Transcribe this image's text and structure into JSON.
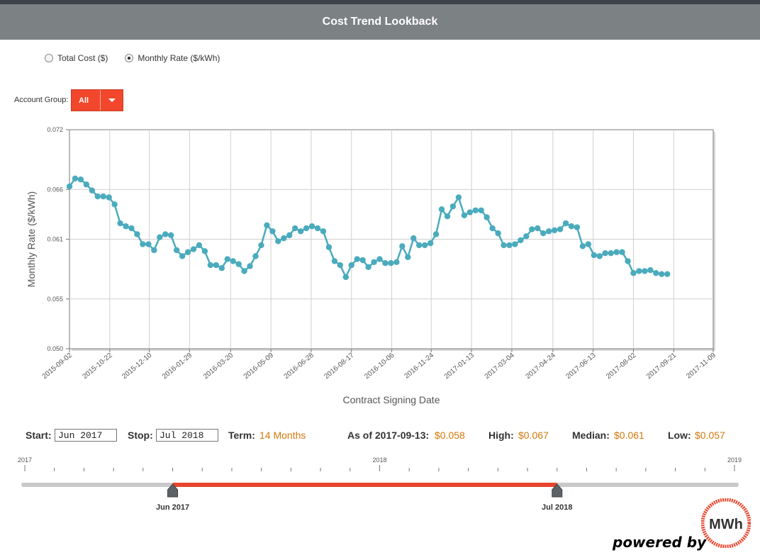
{
  "header": {
    "title": "Cost Trend Lookback"
  },
  "metric_toggle": {
    "options": [
      {
        "label": "Total Cost ($)",
        "selected": false
      },
      {
        "label": "Monthly Rate ($/kWh)",
        "selected": true
      }
    ]
  },
  "account_group": {
    "label": "Account Group:",
    "value": "All"
  },
  "chart_data": {
    "type": "line",
    "xlabel": "Contract Signing Date",
    "ylabel": "Monthly Rate ($/kWh)",
    "ylim": [
      0.05,
      0.072
    ],
    "yticks": [
      "0.050",
      "0.055",
      "0.061",
      "0.066",
      "0.072"
    ],
    "xlim": [
      "2015-09-02",
      "2017-11-09"
    ],
    "xticks": [
      "2015-09-02",
      "2015-10-22",
      "2015-12-10",
      "2016-01-29",
      "2016-03-20",
      "2016-05-09",
      "2016-06-28",
      "2016-08-17",
      "2016-10-06",
      "2016-11-24",
      "2017-01-13",
      "2017-03-04",
      "2017-04-24",
      "2017-06-13",
      "2017-08-02",
      "2017-09-21",
      "2017-11-09"
    ],
    "grid": true,
    "series": [
      {
        "color": "#4aabbd",
        "points": [
          [
            "2015-09-02",
            0.0663
          ],
          [
            "2015-09-09",
            0.0671
          ],
          [
            "2015-09-16",
            0.067
          ],
          [
            "2015-09-23",
            0.0665
          ],
          [
            "2015-09-30",
            0.0659
          ],
          [
            "2015-10-07",
            0.0653
          ],
          [
            "2015-10-14",
            0.0653
          ],
          [
            "2015-10-21",
            0.0652
          ],
          [
            "2015-10-28",
            0.0645
          ],
          [
            "2015-11-04",
            0.0626
          ],
          [
            "2015-11-11",
            0.0623
          ],
          [
            "2015-11-18",
            0.0621
          ],
          [
            "2015-11-25",
            0.0615
          ],
          [
            "2015-12-02",
            0.0605
          ],
          [
            "2015-12-09",
            0.0605
          ],
          [
            "2015-12-16",
            0.0599
          ],
          [
            "2015-12-23",
            0.0612
          ],
          [
            "2015-12-30",
            0.0615
          ],
          [
            "2016-01-06",
            0.0614
          ],
          [
            "2016-01-13",
            0.0599
          ],
          [
            "2016-01-20",
            0.0593
          ],
          [
            "2016-01-27",
            0.0597
          ],
          [
            "2016-02-03",
            0.06
          ],
          [
            "2016-02-10",
            0.0604
          ],
          [
            "2016-02-17",
            0.0598
          ],
          [
            "2016-02-24",
            0.0584
          ],
          [
            "2016-03-02",
            0.0584
          ],
          [
            "2016-03-09",
            0.0581
          ],
          [
            "2016-03-16",
            0.059
          ],
          [
            "2016-03-23",
            0.0588
          ],
          [
            "2016-03-30",
            0.0585
          ],
          [
            "2016-04-06",
            0.0578
          ],
          [
            "2016-04-13",
            0.0583
          ],
          [
            "2016-04-20",
            0.0593
          ],
          [
            "2016-04-27",
            0.0604
          ],
          [
            "2016-05-04",
            0.0624
          ],
          [
            "2016-05-11",
            0.0618
          ],
          [
            "2016-05-18",
            0.0608
          ],
          [
            "2016-05-25",
            0.0611
          ],
          [
            "2016-06-01",
            0.0614
          ],
          [
            "2016-06-08",
            0.0621
          ],
          [
            "2016-06-15",
            0.0618
          ],
          [
            "2016-06-22",
            0.0621
          ],
          [
            "2016-06-29",
            0.0623
          ],
          [
            "2016-07-06",
            0.0621
          ],
          [
            "2016-07-13",
            0.0618
          ],
          [
            "2016-07-20",
            0.0602
          ],
          [
            "2016-07-27",
            0.0588
          ],
          [
            "2016-08-03",
            0.0584
          ],
          [
            "2016-08-10",
            0.0572
          ],
          [
            "2016-08-17",
            0.0584
          ],
          [
            "2016-08-24",
            0.059
          ],
          [
            "2016-08-31",
            0.0589
          ],
          [
            "2016-09-07",
            0.0582
          ],
          [
            "2016-09-14",
            0.0587
          ],
          [
            "2016-09-21",
            0.059
          ],
          [
            "2016-09-28",
            0.0586
          ],
          [
            "2016-10-05",
            0.0586
          ],
          [
            "2016-10-12",
            0.0587
          ],
          [
            "2016-10-19",
            0.0603
          ],
          [
            "2016-10-26",
            0.0592
          ],
          [
            "2016-11-02",
            0.0611
          ],
          [
            "2016-11-09",
            0.0604
          ],
          [
            "2016-11-16",
            0.0604
          ],
          [
            "2016-11-23",
            0.0606
          ],
          [
            "2016-11-30",
            0.0615
          ],
          [
            "2016-12-07",
            0.064
          ],
          [
            "2016-12-14",
            0.0633
          ],
          [
            "2016-12-21",
            0.0643
          ],
          [
            "2016-12-28",
            0.0652
          ],
          [
            "2017-01-04",
            0.0634
          ],
          [
            "2017-01-11",
            0.0637
          ],
          [
            "2017-01-18",
            0.0639
          ],
          [
            "2017-01-25",
            0.0639
          ],
          [
            "2017-02-01",
            0.0632
          ],
          [
            "2017-02-08",
            0.0621
          ],
          [
            "2017-02-15",
            0.0616
          ],
          [
            "2017-02-22",
            0.0604
          ],
          [
            "2017-03-01",
            0.0604
          ],
          [
            "2017-03-08",
            0.0605
          ],
          [
            "2017-03-15",
            0.0609
          ],
          [
            "2017-03-22",
            0.0613
          ],
          [
            "2017-03-29",
            0.062
          ],
          [
            "2017-04-05",
            0.0621
          ],
          [
            "2017-04-12",
            0.0616
          ],
          [
            "2017-04-19",
            0.0618
          ],
          [
            "2017-04-26",
            0.0619
          ],
          [
            "2017-05-03",
            0.062
          ],
          [
            "2017-05-10",
            0.0626
          ],
          [
            "2017-05-17",
            0.0623
          ],
          [
            "2017-05-24",
            0.0622
          ],
          [
            "2017-05-31",
            0.0603
          ],
          [
            "2017-06-07",
            0.0605
          ],
          [
            "2017-06-14",
            0.0594
          ],
          [
            "2017-06-21",
            0.0593
          ],
          [
            "2017-06-28",
            0.0596
          ],
          [
            "2017-07-05",
            0.0596
          ],
          [
            "2017-07-12",
            0.0597
          ],
          [
            "2017-07-19",
            0.0597
          ],
          [
            "2017-07-26",
            0.0588
          ],
          [
            "2017-08-02",
            0.0576
          ],
          [
            "2017-08-09",
            0.0578
          ],
          [
            "2017-08-16",
            0.0578
          ],
          [
            "2017-08-23",
            0.0579
          ],
          [
            "2017-08-30",
            0.0576
          ],
          [
            "2017-09-06",
            0.0575
          ],
          [
            "2017-09-13",
            0.0575
          ]
        ]
      }
    ]
  },
  "range": {
    "start_label": "Start:",
    "start_value": "Jun 2017",
    "stop_label": "Stop:",
    "stop_value": "Jul 2018",
    "term_label": "Term:",
    "term_value": "14 Months"
  },
  "stats": {
    "asof_label": "As of 2017-09-13:",
    "asof_value": "$0.058",
    "high_label": "High:",
    "high_value": "$0.067",
    "median_label": "Median:",
    "median_value": "$0.061",
    "low_label": "Low:",
    "low_value": "$0.057"
  },
  "timeline": {
    "years": [
      "2017",
      "2018",
      "2019"
    ],
    "months_total": 25,
    "start_month_index": 5,
    "end_month_index": 18,
    "start_label": "Jun 2017",
    "end_label": "Jul 2018",
    "accent": "#e8452c"
  },
  "footer": {
    "powered_by": "powered by",
    "logo_text": "MWh"
  }
}
